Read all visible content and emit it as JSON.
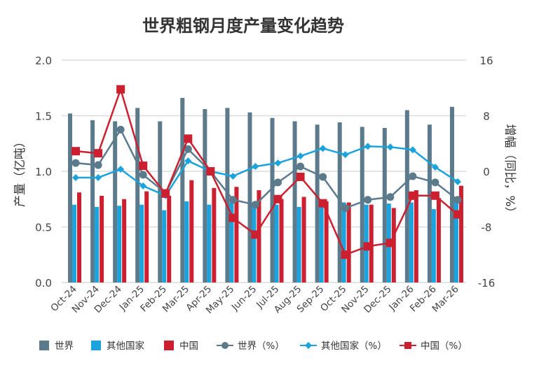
{
  "chart_data": {
    "type": "bar",
    "title": "世界粗钢月度产量变化趋势",
    "ylabel": "产量（亿吨）",
    "y2label": "增幅（同比，%）",
    "ylim": [
      0,
      2.0
    ],
    "y2lim": [
      -16,
      16
    ],
    "yticks": [
      "0.0",
      "0.5",
      "1.0",
      "1.5",
      "2.0"
    ],
    "y2ticks": [
      "-16",
      "-8",
      "0",
      "8",
      "16"
    ],
    "grid": true,
    "legend_position": "bottom",
    "categories": [
      "Oct-24",
      "Nov-24",
      "Dec-24",
      "Jan-25",
      "Feb-25",
      "Mar-25",
      "Apr-25",
      "May-25",
      "Jun-25",
      "Jul-25",
      "Aug-25",
      "Sep-25",
      "Oct-25",
      "Nov-25",
      "Dec-25",
      "Jan-26",
      "Feb-26",
      "Mar-26"
    ],
    "series": [
      {
        "name": "世界",
        "type": "bar",
        "axis": "left",
        "color": "#5b7a8c",
        "values": [
          1.52,
          1.46,
          1.45,
          1.57,
          1.45,
          1.66,
          1.56,
          1.57,
          1.53,
          1.48,
          1.45,
          1.42,
          1.44,
          1.4,
          1.39,
          1.55,
          1.42,
          1.58
        ]
      },
      {
        "name": "其他国家",
        "type": "bar",
        "axis": "left",
        "color": "#1aa3dc",
        "values": [
          0.7,
          0.68,
          0.69,
          0.7,
          0.65,
          0.73,
          0.7,
          0.72,
          0.7,
          0.7,
          0.68,
          0.7,
          0.72,
          0.7,
          0.71,
          0.72,
          0.66,
          0.73
        ]
      },
      {
        "name": "中国",
        "type": "bar",
        "axis": "left",
        "color": "#cc1f2f",
        "values": [
          0.81,
          0.78,
          0.75,
          0.82,
          0.78,
          0.92,
          0.85,
          0.86,
          0.83,
          0.75,
          0.77,
          0.73,
          0.72,
          0.7,
          0.67,
          0.83,
          0.76,
          0.87
        ]
      },
      {
        "name": "世界（%）",
        "type": "line",
        "marker": "circle",
        "axis": "right",
        "color": "#5b7a8c",
        "values": [
          1.2,
          0.9,
          6.0,
          -0.5,
          -3.1,
          3.2,
          0,
          -4.1,
          -4.8,
          -1.6,
          0.7,
          -0.8,
          -5.3,
          -4.1,
          -3.7,
          -0.7,
          -1.6,
          -4.1
        ]
      },
      {
        "name": "其他国家（%）",
        "type": "line",
        "marker": "diamond",
        "axis": "right",
        "color": "#1aa3dc",
        "values": [
          -0.9,
          -0.9,
          0.3,
          -2.1,
          -3.5,
          1.5,
          0,
          -0.7,
          0.7,
          1.2,
          2.2,
          3.3,
          2.4,
          3.6,
          3.5,
          3.1,
          0.6,
          -1.5
        ]
      },
      {
        "name": "中国（%）",
        "type": "line",
        "marker": "square",
        "axis": "right",
        "color": "#cc1f2f",
        "values": [
          2.9,
          2.6,
          11.8,
          0.8,
          -3.2,
          4.7,
          0,
          -6.7,
          -9.1,
          -4.0,
          -0.8,
          -4.6,
          -12.0,
          -10.8,
          -10.3,
          -3.5,
          -3.5,
          -6.2
        ]
      }
    ]
  }
}
